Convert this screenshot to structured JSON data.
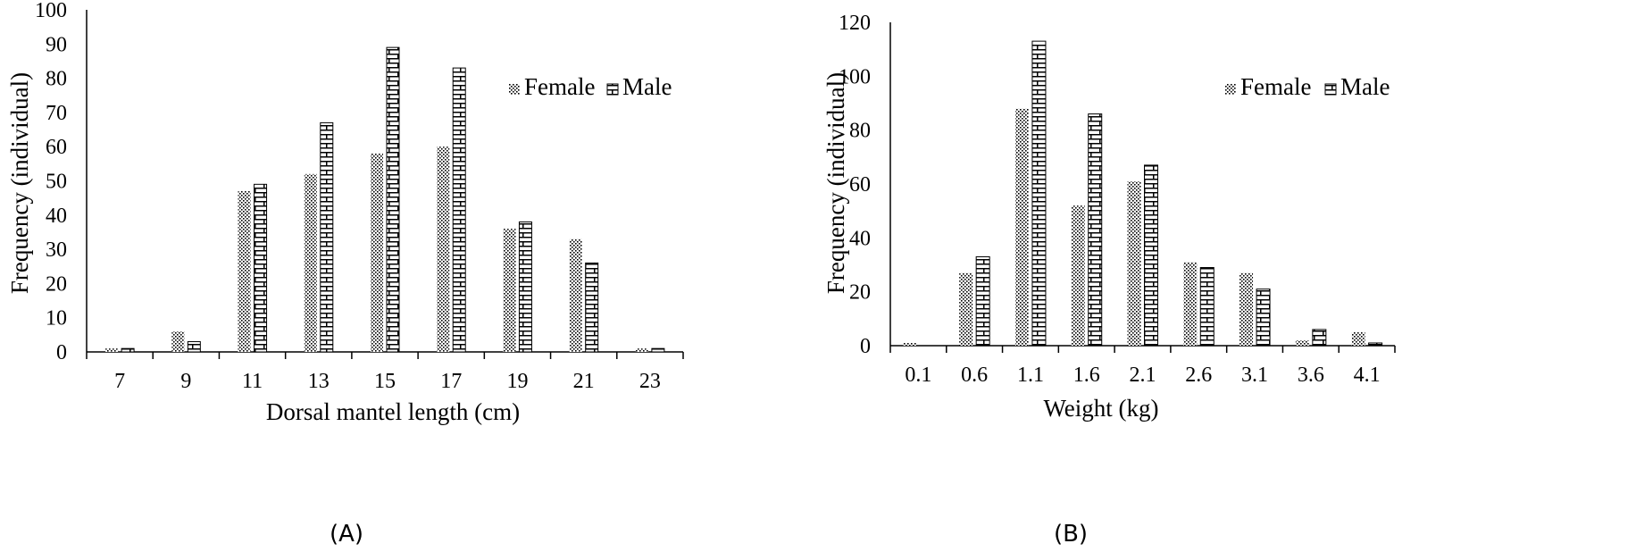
{
  "chart_data": [
    {
      "type": "bar",
      "panel_label": "(A)",
      "title": "",
      "xlabel": "Dorsal mantel length (cm)",
      "ylabel": "Frequency (individual)",
      "categories": [
        "7",
        "9",
        "11",
        "13",
        "15",
        "17",
        "19",
        "21",
        "23"
      ],
      "ylim": [
        0,
        100
      ],
      "yticks": [
        "0",
        "10",
        "20",
        "30",
        "40",
        "50",
        "60",
        "70",
        "80",
        "90",
        "100"
      ],
      "grid": false,
      "legend_position": "top-right",
      "series": [
        {
          "name": "Female",
          "pattern": "dots",
          "values": [
            1,
            6,
            47,
            52,
            58,
            60,
            36,
            33,
            1
          ]
        },
        {
          "name": "Male",
          "pattern": "brick",
          "values": [
            1,
            3,
            49,
            67,
            89,
            83,
            38,
            26,
            1
          ]
        }
      ]
    },
    {
      "type": "bar",
      "panel_label": "(B)",
      "title": "",
      "xlabel": "Weight (kg)",
      "ylabel": "Frequency (individual)",
      "categories": [
        "0.1",
        "0.6",
        "1.1",
        "1.6",
        "2.1",
        "2.6",
        "3.1",
        "3.6",
        "4.1"
      ],
      "ylim": [
        0,
        120
      ],
      "yticks": [
        "0",
        "20",
        "40",
        "60",
        "80",
        "100",
        "120"
      ],
      "grid": false,
      "legend_position": "top-right",
      "series": [
        {
          "name": "Female",
          "pattern": "dots",
          "values": [
            1,
            27,
            88,
            52,
            61,
            31,
            27,
            2,
            5
          ]
        },
        {
          "name": "Male",
          "pattern": "brick",
          "values": [
            0,
            33,
            113,
            86,
            67,
            29,
            21,
            6,
            1
          ]
        }
      ]
    }
  ]
}
